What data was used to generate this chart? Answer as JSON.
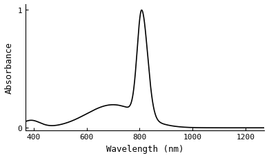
{
  "title": "",
  "xlabel": "Wavelength (nm)",
  "ylabel": "Absorbance",
  "xlim": [
    370,
    1270
  ],
  "ylim": [
    -0.02,
    1.05
  ],
  "xticks": [
    400,
    600,
    800,
    1000,
    1200
  ],
  "yticks": [
    0,
    1
  ],
  "line_color": "#000000",
  "line_width": 1.2,
  "background_color": "#ffffff",
  "font_size": 9
}
